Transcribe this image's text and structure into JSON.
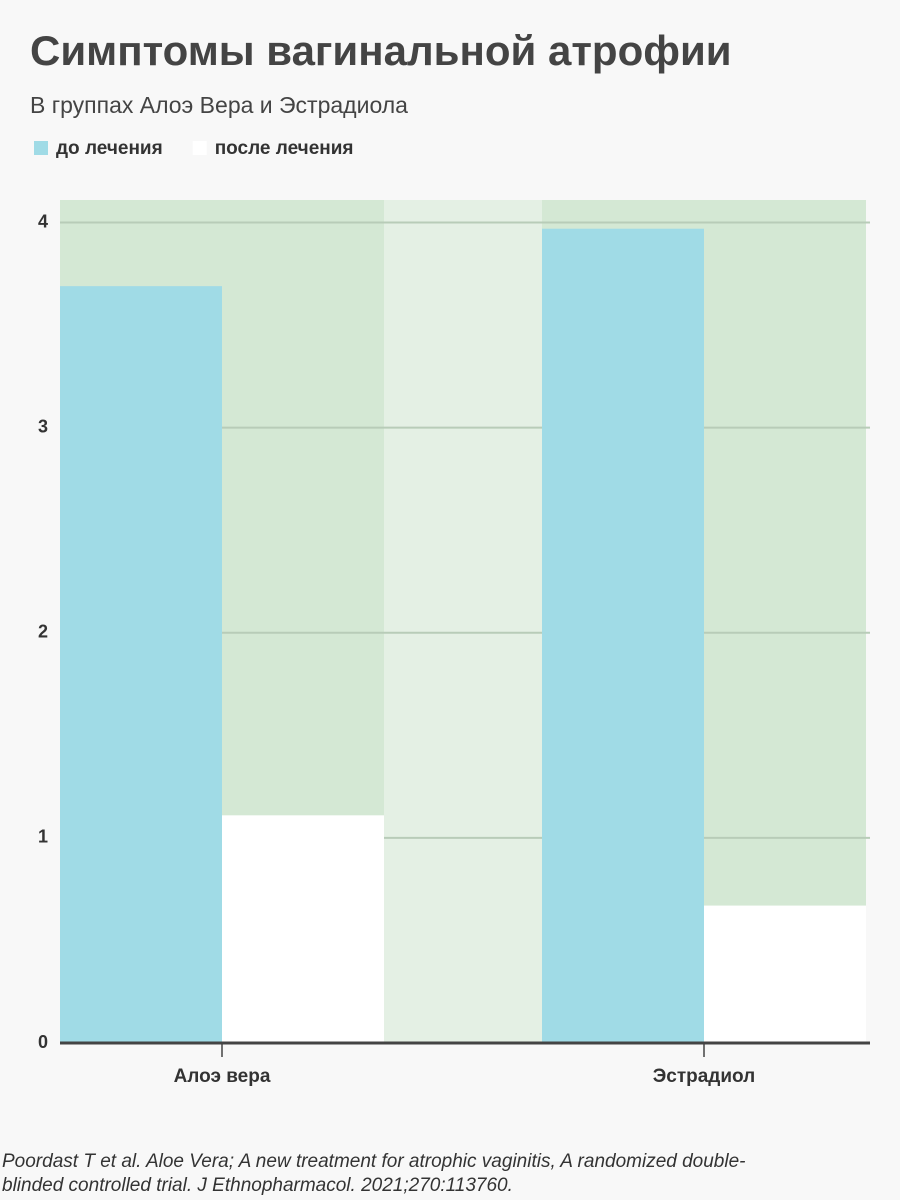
{
  "chart_data": {
    "type": "bar",
    "title": "Симптомы вагинальной атрофии",
    "subtitle": "В группах Алоэ Вера и Эстрадиола",
    "categories": [
      "Алоэ вера",
      "Эстрадиол"
    ],
    "series": [
      {
        "name": "до лечения",
        "color": "#a0dbe6",
        "values": [
          3.69,
          3.97
        ]
      },
      {
        "name": "после лечения",
        "color": "#ffffff",
        "values": [
          1.11,
          0.67
        ]
      }
    ],
    "ylim": [
      0,
      4.11
    ],
    "yticks": [
      0,
      1,
      2,
      3,
      4
    ],
    "grid": true,
    "source": "Poordast T et al. Aloe Vera; A new treatment for atrophic vaginitis, A randomized double-blinded controlled trial. J Ethnopharmacol. 2021;270:113760."
  }
}
